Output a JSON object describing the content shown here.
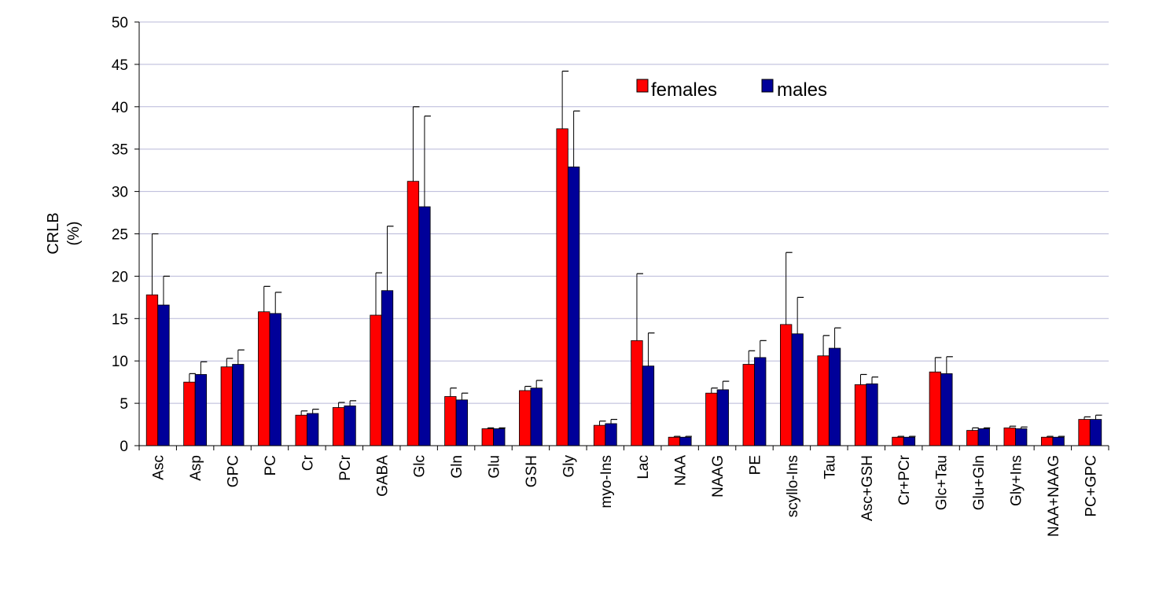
{
  "chart_data": {
    "type": "bar",
    "title": "",
    "xlabel": "",
    "ylabel": [
      "CRLB",
      "(%)"
    ],
    "ylim": [
      0,
      50
    ],
    "yticks": [
      0,
      5,
      10,
      15,
      20,
      25,
      30,
      35,
      40,
      45,
      50
    ],
    "grid": true,
    "legend_position": "top-center",
    "error_bars": true,
    "categories": [
      "Asc",
      "Asp",
      "GPC",
      "PC",
      "Cr",
      "PCr",
      "GABA",
      "Glc",
      "Gln",
      "Glu",
      "GSH",
      "Gly",
      "myo-Ins",
      "Lac",
      "NAA",
      "NAAG",
      "PE",
      "scyllo-Ins",
      "Tau",
      "Asc+GSH",
      "Cr+PCr",
      "Glc+Tau",
      "Glu+Gln",
      "Gly+Ins",
      "NAA+NAAG",
      "PC+GPC"
    ],
    "series": [
      {
        "name": "females",
        "color": "#ff0000",
        "values": [
          17.8,
          7.5,
          9.3,
          15.8,
          3.6,
          4.5,
          15.4,
          31.2,
          5.8,
          2.0,
          6.5,
          37.4,
          2.4,
          12.4,
          1.0,
          6.2,
          9.6,
          14.3,
          10.6,
          7.2,
          1.0,
          8.7,
          1.8,
          2.1,
          1.0,
          3.1
        ],
        "errors": [
          7.2,
          1.0,
          1.0,
          3.0,
          0.5,
          0.6,
          5.0,
          8.8,
          1.0,
          0.1,
          0.5,
          6.8,
          0.5,
          7.9,
          0.1,
          0.6,
          1.6,
          8.5,
          2.4,
          1.2,
          0.1,
          1.7,
          0.3,
          0.2,
          0.1,
          0.3
        ]
      },
      {
        "name": "males",
        "color": "#000099",
        "values": [
          16.6,
          8.4,
          9.6,
          15.6,
          3.8,
          4.7,
          18.3,
          28.2,
          5.4,
          2.0,
          6.8,
          32.9,
          2.6,
          9.4,
          1.0,
          6.6,
          10.4,
          13.2,
          11.5,
          7.3,
          1.0,
          8.5,
          2.0,
          2.0,
          1.0,
          3.1
        ],
        "errors": [
          3.4,
          1.5,
          1.7,
          2.5,
          0.5,
          0.6,
          7.6,
          10.7,
          0.8,
          0.1,
          0.9,
          6.6,
          0.5,
          3.9,
          0.1,
          1.0,
          2.0,
          4.3,
          2.4,
          0.8,
          0.1,
          2.0,
          0.1,
          0.2,
          0.1,
          0.5
        ]
      }
    ]
  }
}
